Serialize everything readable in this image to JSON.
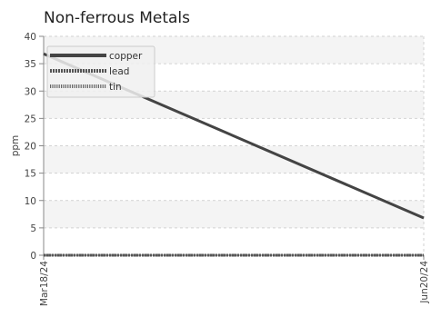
{
  "chart_data": {
    "type": "line",
    "title": "Non-ferrous Metals",
    "xlabel": "",
    "ylabel": "ppm",
    "x": [
      "2024-03-18",
      "2024-06-20"
    ],
    "x_tick_labels": [
      "Mar18/24",
      "Jun20/24"
    ],
    "ylim": [
      0,
      40
    ],
    "y_ticks": [
      0,
      5,
      10,
      15,
      20,
      25,
      30,
      35,
      40
    ],
    "grid": true,
    "legend_position": "top-left",
    "series": [
      {
        "name": "copper",
        "values": [
          36.8,
          6.8
        ],
        "color": "#444444",
        "style": "solid"
      },
      {
        "name": "lead",
        "values": [
          0,
          0
        ],
        "color": "#555555",
        "style": "dashed"
      },
      {
        "name": "tin",
        "values": [
          0,
          0
        ],
        "color": "#666666",
        "style": "dotted"
      }
    ]
  }
}
